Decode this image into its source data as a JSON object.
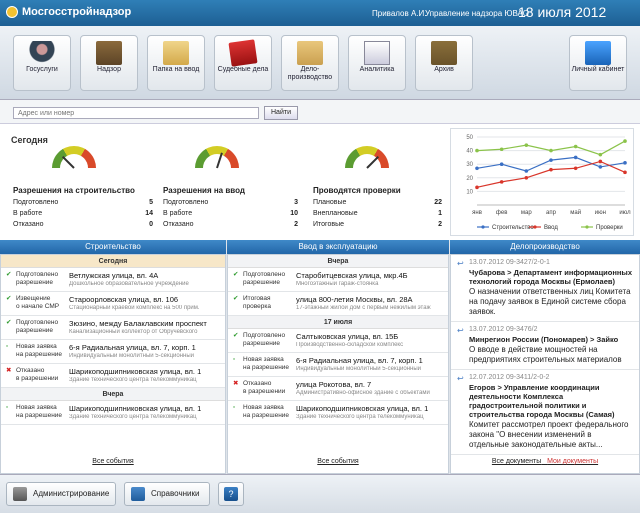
{
  "app": {
    "title": "Мосгосстройнадзор",
    "user": "Привалов А.И.",
    "dept": "Управление надзора ЮВАО",
    "date": "18 июля 2012"
  },
  "toolbar": [
    {
      "name": "gosuslugi",
      "label": "Госуслуги",
      "icon": "user-icon"
    },
    {
      "name": "nadzor",
      "label": "Надзор",
      "icon": "case-icon"
    },
    {
      "name": "papka",
      "label": "Папка на ввод",
      "icon": "folder-icon"
    },
    {
      "name": "sud",
      "label": "Судебные дела",
      "icon": "book-icon"
    },
    {
      "name": "delo",
      "label": "Дело- производство",
      "icon": "envelope-icon"
    },
    {
      "name": "analytics",
      "label": "Аналитика",
      "icon": "analytics-icon"
    },
    {
      "name": "archive",
      "label": "Архив",
      "icon": "archive-icon"
    },
    {
      "name": "cabinet",
      "label": "Личный кабинет",
      "icon": "cabinet-icon"
    }
  ],
  "search": {
    "placeholder": "Адрес или номер",
    "button": "Найти"
  },
  "summary": {
    "title": "Сегодня",
    "gauges": [
      0.25,
      0.6,
      0.75
    ],
    "columns": [
      {
        "title": "Разрешения на строительство",
        "rows": [
          {
            "label": "Подготовлено",
            "value": "5"
          },
          {
            "label": "В работе",
            "value": "14"
          },
          {
            "label": "Отказано",
            "value": "0"
          }
        ]
      },
      {
        "title": "Разрешения на ввод",
        "rows": [
          {
            "label": "Подготовлено",
            "value": "3"
          },
          {
            "label": "В работе",
            "value": "10"
          },
          {
            "label": "Отказано",
            "value": "2"
          }
        ]
      },
      {
        "title": "Проводятся проверки",
        "rows": [
          {
            "label": "Плановые",
            "value": "22"
          },
          {
            "label": "Внеплановые",
            "value": "1"
          },
          {
            "label": "Итоговые",
            "value": "2"
          }
        ]
      }
    ]
  },
  "chart_data": {
    "type": "line",
    "categories": [
      "янв",
      "фев",
      "мар",
      "апр",
      "май",
      "июн",
      "июл"
    ],
    "ylim": [
      0,
      50
    ],
    "yticks": [
      10,
      20,
      30,
      40,
      50
    ],
    "legend_position": "bottom",
    "grid": true,
    "series": [
      {
        "name": "Строительство",
        "color": "#3a6fc4",
        "values": [
          27,
          30,
          25,
          33,
          35,
          28,
          31
        ]
      },
      {
        "name": "Ввод",
        "color": "#d9362b",
        "values": [
          13,
          17,
          20,
          26,
          27,
          32,
          24
        ]
      },
      {
        "name": "Проверки",
        "color": "#8bc34a",
        "values": [
          40,
          41,
          44,
          40,
          43,
          37,
          47
        ]
      }
    ]
  },
  "panels": {
    "construction": {
      "title": "Строительство",
      "sections": [
        {
          "label": "Сегодня",
          "today": true,
          "items": [
            {
              "status": [
                "Подготовлено",
                "разрешение"
              ],
              "mark": "✔",
              "red": false,
              "title": "Ветлужская улица, вл. 4А",
              "sub": "Дошкольное образовательное учреждение"
            },
            {
              "status": [
                "Извещение",
                "о начале СМР"
              ],
              "mark": "✔",
              "red": false,
              "title": "Староорловская улица, вл. 106",
              "sub": "Стационарный краевой комплекс на 500 прим."
            },
            {
              "status": [
                "Подготовлено",
                "разрешение"
              ],
              "mark": "✔",
              "red": false,
              "title": "Зюзино, между Балаклавским проспект",
              "sub": "Канализационный коллектор от Обручевского"
            },
            {
              "status": [
                "Новая заявка",
                "на разрешение"
              ],
              "mark": "▫",
              "red": false,
              "title": "6-я Радиальная улица, вл. 7, корп. 1",
              "sub": "Индивидуальный монолитный 5-секционный"
            },
            {
              "status": [
                "Отказано",
                "в разрешении"
              ],
              "mark": "✖",
              "red": true,
              "title": "Шарикоподшипниковская улица, вл. 1",
              "sub": "Здание технического центра телекоммуникац"
            }
          ]
        },
        {
          "label": "Вчера",
          "today": false,
          "items": [
            {
              "status": [
                "Новая заявка",
                "на разрешение"
              ],
              "mark": "▫",
              "red": false,
              "title": "Шарикоподшипниковская улица, вл. 1",
              "sub": "Здание технического центра телекоммуникац"
            }
          ]
        }
      ],
      "all": "Все события"
    },
    "commissioning": {
      "title": "Ввод в эксплуатацию",
      "sections": [
        {
          "label": "Вчера",
          "today": false,
          "items": [
            {
              "status": [
                "Подготовлено",
                "разрешение"
              ],
              "mark": "✔",
              "red": false,
              "title": "Старобитцевская улица, мкр.4Б",
              "sub": "Многоэтажный гараж-стоянка"
            },
            {
              "status": [
                "Итоговая",
                "проверка"
              ],
              "mark": "✔",
              "red": false,
              "title": "улица 800-летия Москвы, вл. 28А",
              "sub": "17-этажный жилой дом с первым нежилым этаж"
            }
          ]
        },
        {
          "label": "17 июля",
          "today": false,
          "items": [
            {
              "status": [
                "Подготовлено",
                "разрешение"
              ],
              "mark": "✔",
              "red": false,
              "title": "Салтыковская улица, вл. 15Б",
              "sub": "Производственно-складской комплекс"
            },
            {
              "status": [
                "Новая заявка",
                "на разрешение"
              ],
              "mark": "▫",
              "red": false,
              "title": "6-я Радиальная улица, вл. 7, корп. 1",
              "sub": "Индивидуальный монолитный 5-секционный"
            },
            {
              "status": [
                "Отказано",
                "в разрешении"
              ],
              "mark": "✖",
              "red": true,
              "title": "улица Рокотова, вл. 7",
              "sub": "Административно-офисное здание с объектами"
            },
            {
              "status": [
                "Новая заявка",
                "на разрешение"
              ],
              "mark": "▫",
              "red": false,
              "title": "Шарикоподшипниковская улица, вл. 1",
              "sub": "Здание технического центра телекоммуникац"
            }
          ]
        }
      ],
      "all": "Все события"
    },
    "docs": {
      "title": "Делопроизводство",
      "items": [
        {
          "meta": "13.07.2012   09-3427/2-0-1",
          "title": "Чубарова > Департамент информационных технологий города Москвы (Ермолаев)",
          "desc": "О назначении ответственных лиц Комитета на подачу заявок в Единой системе сбора заявок."
        },
        {
          "meta": "13.07.2012   09-3476/2",
          "title": "Минрегион России (Пономарев) > Зайко",
          "desc": "О вводе в действие мощностей на предприятиях строительных материалов"
        },
        {
          "meta": "12.07.2012   09-3411/2-0-2",
          "title": "Егоров > Управление координации деятельности Комплекса градостроительной политики и строительства города Москвы (Самая)",
          "desc": "Комитет рассмотрел проект федерального закона \"О внесении изменений в отдельные законодательные акты..."
        }
      ],
      "all": "Все документы",
      "mine": "Мои документы"
    }
  },
  "footer": {
    "admin": "Администрирование",
    "refs": "Справочники"
  }
}
